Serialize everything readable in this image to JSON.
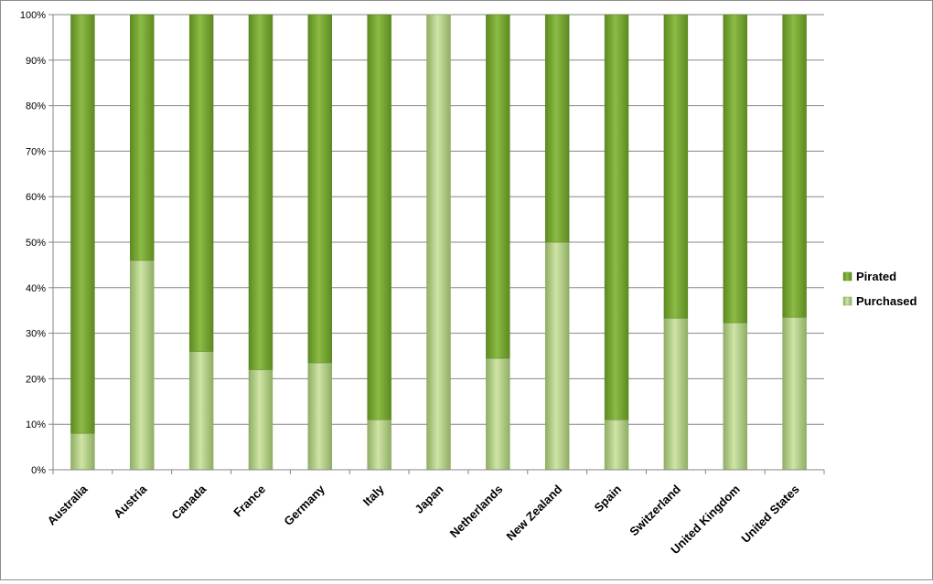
{
  "chart_data": {
    "type": "bar",
    "stacked": true,
    "categories": [
      "Australia",
      "Austria",
      "Canada",
      "France",
      "Germany",
      "Italy",
      "Japan",
      "Netherlands",
      "New Zealand",
      "Spain",
      "Switzerland",
      "United Kingdom",
      "United States"
    ],
    "series": [
      {
        "name": "Purchased",
        "values": [
          8,
          46,
          26,
          22,
          23.5,
          11,
          100,
          24.5,
          50,
          11,
          33.3,
          32.3,
          33.5
        ]
      },
      {
        "name": "Pirated",
        "values": [
          92,
          54,
          74,
          78,
          76.5,
          89,
          0,
          75.5,
          50,
          89,
          66.7,
          67.7,
          66.5
        ]
      }
    ],
    "title": "",
    "xlabel": "",
    "ylabel": "",
    "ylim": [
      0,
      100
    ],
    "yticks": [
      "0%",
      "10%",
      "20%",
      "30%",
      "40%",
      "50%",
      "60%",
      "70%",
      "80%",
      "90%",
      "100%"
    ],
    "grid": true,
    "legend": {
      "position": "right",
      "entries": [
        "Pirated",
        "Purchased"
      ]
    },
    "colors": {
      "Purchased": "#a9c97a",
      "Pirated": "#6e9a2e"
    }
  }
}
